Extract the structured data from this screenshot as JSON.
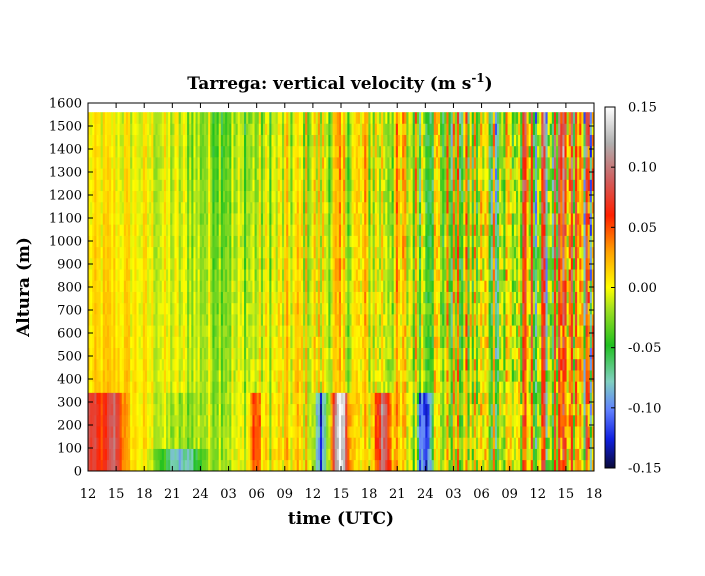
{
  "chart_data": {
    "type": "heatmap",
    "title": "Tarrega: vertical velocity (m s",
    "title_unit_exponent": "-1",
    "title_close": ")",
    "xlabel": "time (UTC)",
    "ylabel": "Altura (m)",
    "x_ticks": [
      "12",
      "15",
      "18",
      "21",
      "24",
      "03",
      "06",
      "09",
      "12",
      "15",
      "18",
      "21",
      "24",
      "03",
      "06",
      "09",
      "12",
      "15",
      "18"
    ],
    "y_ticks": [
      "0",
      "100",
      "200",
      "300",
      "400",
      "500",
      "600",
      "700",
      "800",
      "900",
      "1000",
      "1100",
      "1200",
      "1300",
      "1400",
      "1500",
      "1600"
    ],
    "ylim": [
      0,
      1600
    ],
    "data_top": 1560,
    "colorbar": {
      "ticks": [
        "-0.15",
        "-0.10",
        "-0.05",
        "0.00",
        "0.05",
        "0.10",
        "0.15"
      ],
      "range": [
        -0.15,
        0.15
      ]
    }
  }
}
